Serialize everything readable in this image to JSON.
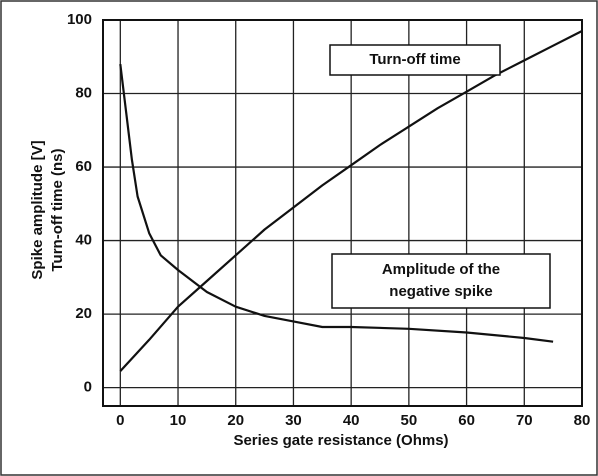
{
  "chart_data": {
    "type": "line",
    "xlabel": "Series gate resistance (Ohms)",
    "ylabel": [
      "Spike amplitude [V]",
      "Turn-off time (ns)"
    ],
    "annotations": [
      {
        "lines": [
          "Turn-off time"
        ]
      },
      {
        "lines": [
          "Amplitude of the",
          "negative spike"
        ]
      }
    ],
    "xlim": [
      -3,
      80
    ],
    "ylim": [
      -5,
      100
    ],
    "xticks": [
      0,
      10,
      20,
      30,
      40,
      50,
      60,
      70,
      80
    ],
    "yticks": [
      0,
      20,
      40,
      60,
      80,
      100
    ],
    "grid": true,
    "series": [
      {
        "color": "#111111",
        "x": [
          0,
          5,
          10,
          15,
          20,
          25,
          30,
          35,
          40,
          45,
          50,
          55,
          60,
          65,
          70,
          75,
          80
        ],
        "values": [
          4.5,
          13,
          22,
          29,
          36,
          43,
          49,
          55,
          60.5,
          66,
          71,
          76,
          80.5,
          85,
          89,
          93,
          97
        ]
      },
      {
        "color": "#111111",
        "x": [
          0,
          1,
          2,
          3,
          5,
          7,
          10,
          15,
          20,
          25,
          30,
          35,
          40,
          50,
          60,
          70,
          75
        ],
        "values": [
          88,
          75,
          62,
          52,
          42,
          36,
          32,
          26,
          22,
          19.5,
          18,
          16.5,
          16.5,
          16,
          15,
          13.5,
          12.5
        ]
      }
    ]
  }
}
